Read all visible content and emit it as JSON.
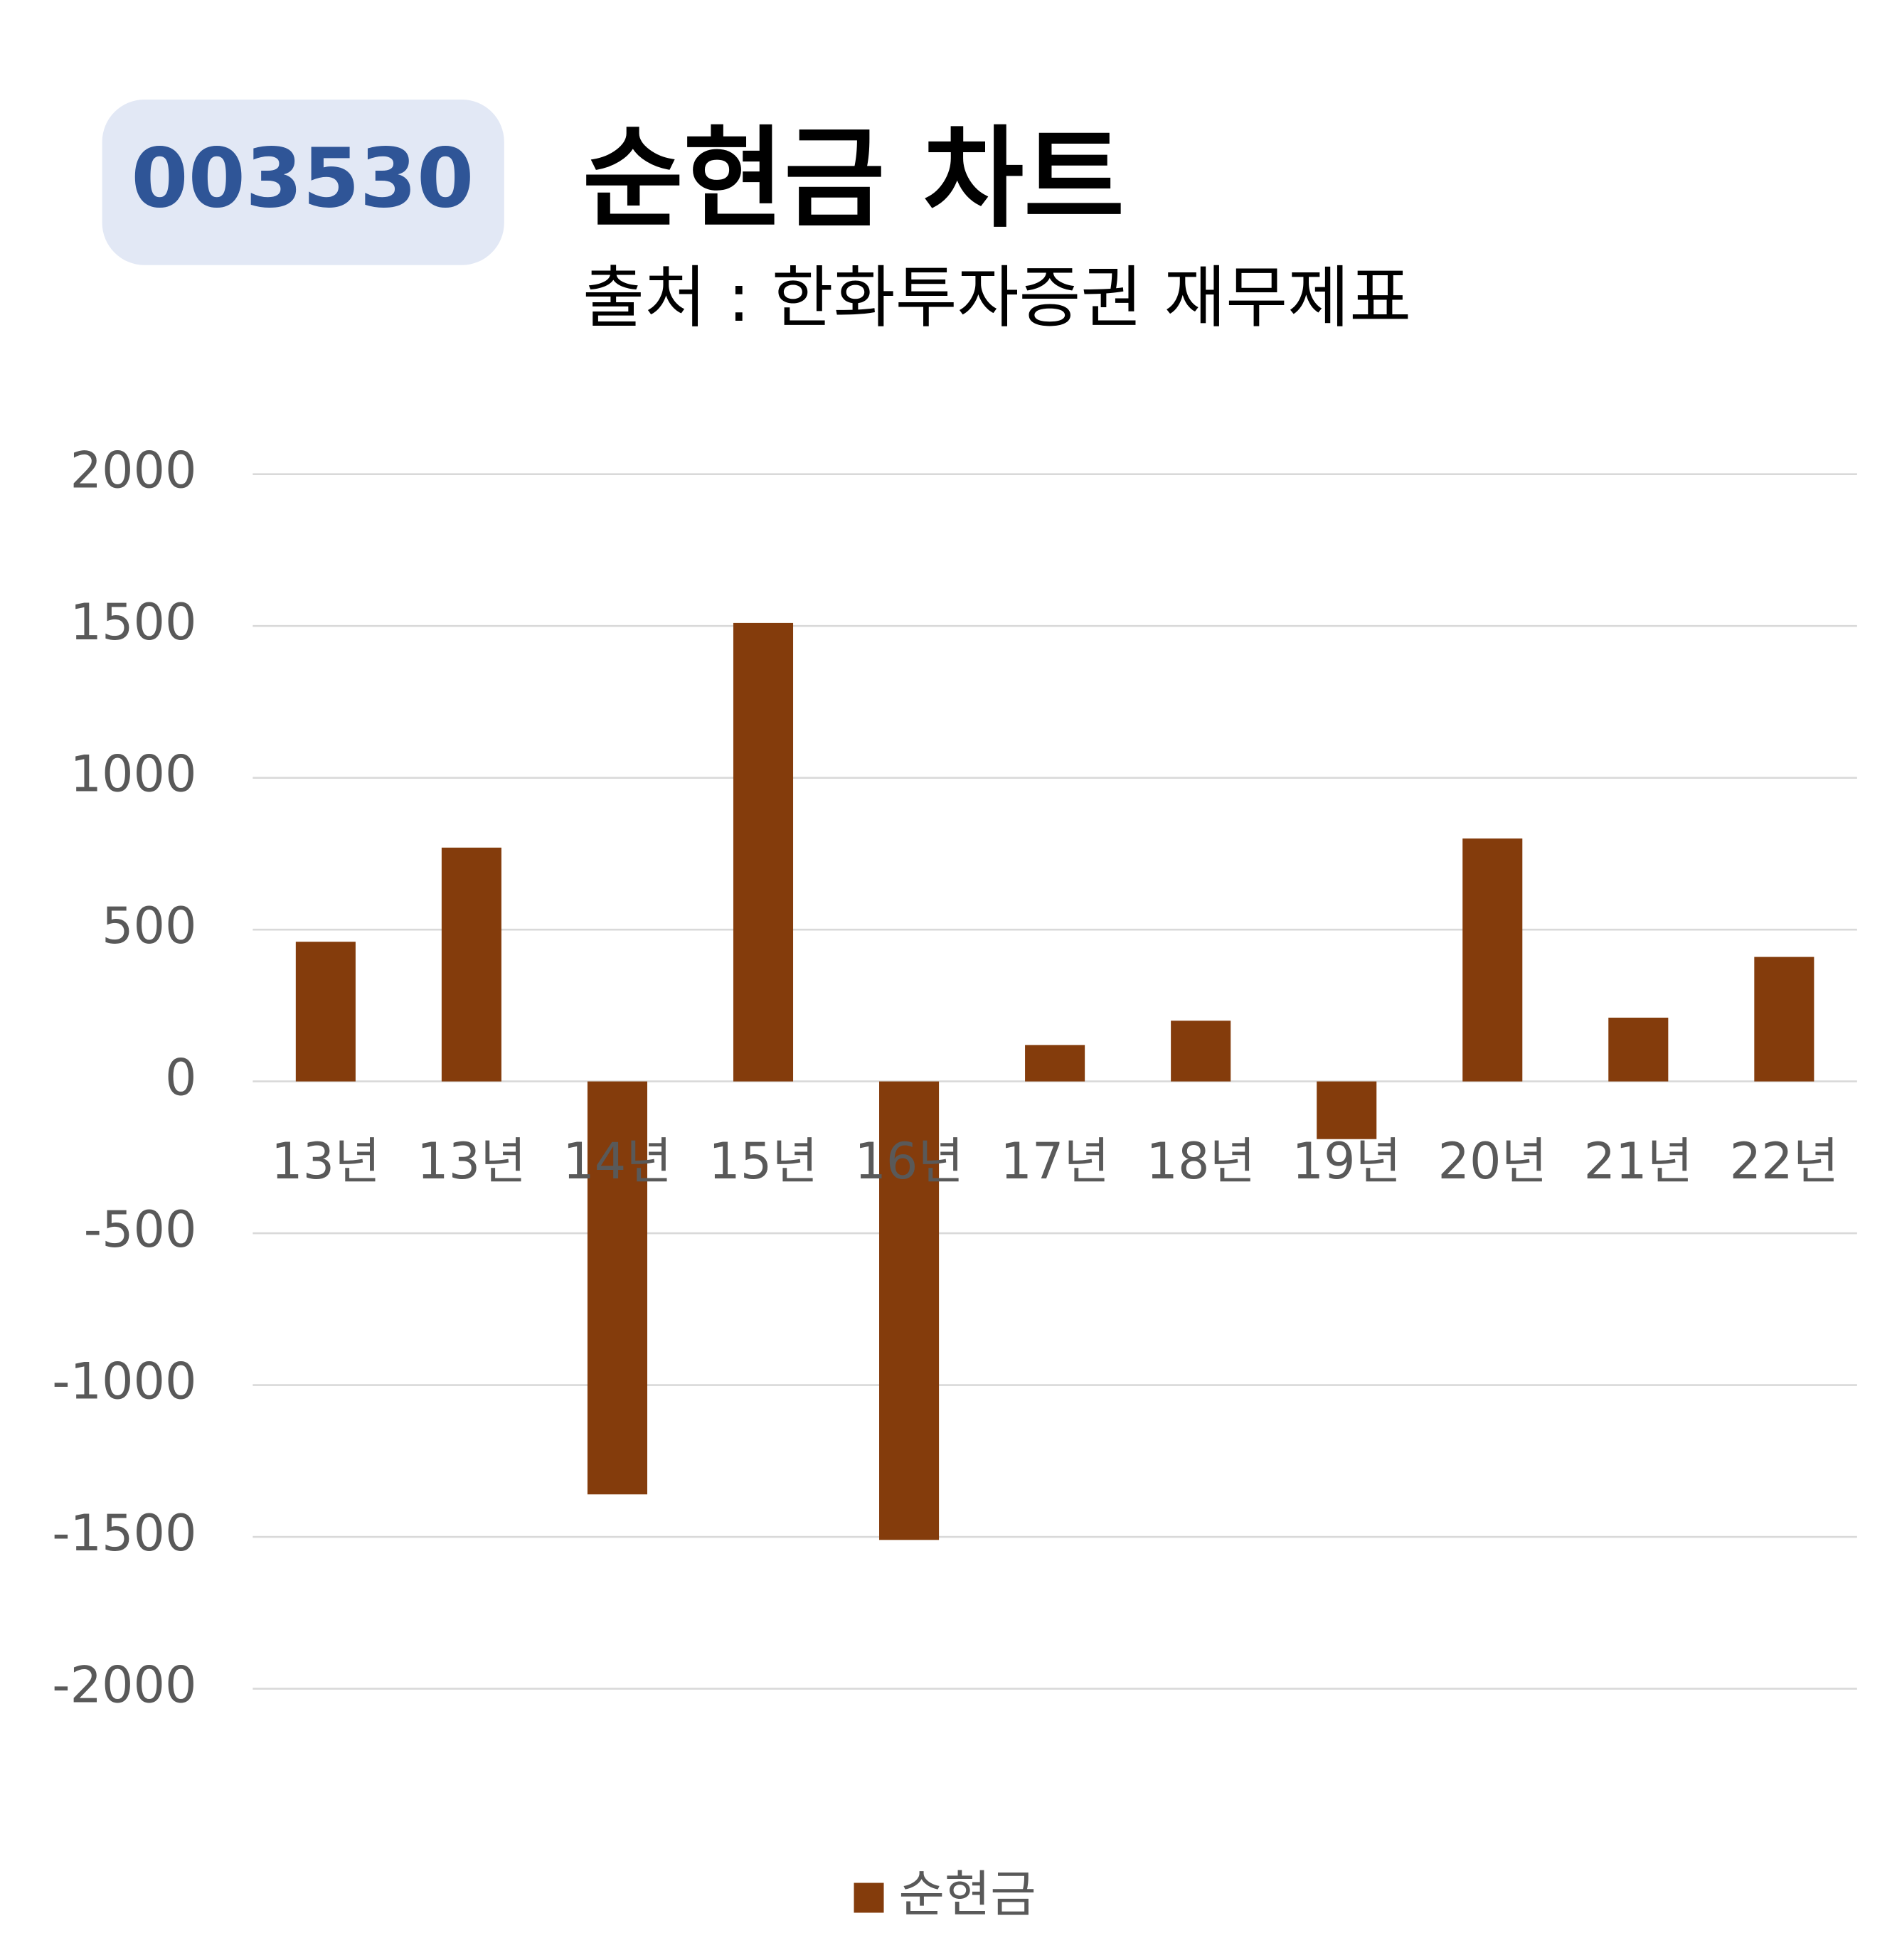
{
  "code": "003530",
  "chart_data": {
    "type": "bar",
    "title": "순현금 차트",
    "subtitle": "출처 : 한화투자증권 재무제표",
    "categories": [
      "13년",
      "13년",
      "14년",
      "15년",
      "16년",
      "17년",
      "18년",
      "19년",
      "20년",
      "21년",
      "22년"
    ],
    "series": [
      {
        "name": "순현금",
        "color": "#843c0c",
        "values": [
          460,
          770,
          -1360,
          1510,
          -1510,
          120,
          200,
          -190,
          800,
          210,
          410
        ]
      }
    ],
    "ylim": [
      -2000,
      2000
    ],
    "yticks": [
      -2000,
      -1500,
      -1000,
      -500,
      0,
      500,
      1000,
      1500,
      2000
    ],
    "grid": true,
    "legend": "bottom"
  }
}
